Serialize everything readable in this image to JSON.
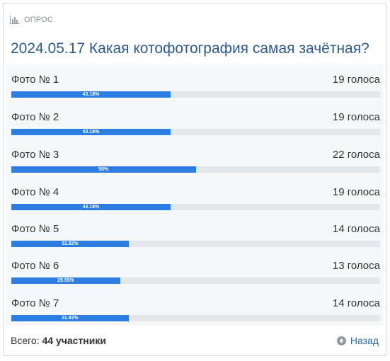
{
  "poll": {
    "header_label": "ОПРОС",
    "title": "2024.05.17 Какая котофотография самая зачётная?",
    "options": [
      {
        "label": "Фото № 1",
        "votes": "19 голоса",
        "percent_text": "43.18%",
        "percent": 43.18
      },
      {
        "label": "Фото № 2",
        "votes": "19 голоса",
        "percent_text": "43.18%",
        "percent": 43.18
      },
      {
        "label": "Фото № 3",
        "votes": "22 голоса",
        "percent_text": "50%",
        "percent": 50
      },
      {
        "label": "Фото № 4",
        "votes": "19 голоса",
        "percent_text": "43.18%",
        "percent": 43.18
      },
      {
        "label": "Фото № 5",
        "votes": "14 голоса",
        "percent_text": "31.82%",
        "percent": 31.82
      },
      {
        "label": "Фото № 6",
        "votes": "13 голоса",
        "percent_text": "29.55%",
        "percent": 29.55
      },
      {
        "label": "Фото № 7",
        "votes": "14 голоса",
        "percent_text": "31.82%",
        "percent": 31.82
      }
    ],
    "footer": {
      "total_prefix": "Всего:",
      "total_value": "44 участники",
      "back_label": "Назад"
    }
  },
  "colors": {
    "bar_fill": "#2b7de1",
    "bar_track": "#e4e7ea",
    "title": "#2d5a8c",
    "link": "#2d6bb3"
  },
  "icons": {
    "header": "bar-chart-icon",
    "back": "arrow-left-circle-icon"
  }
}
